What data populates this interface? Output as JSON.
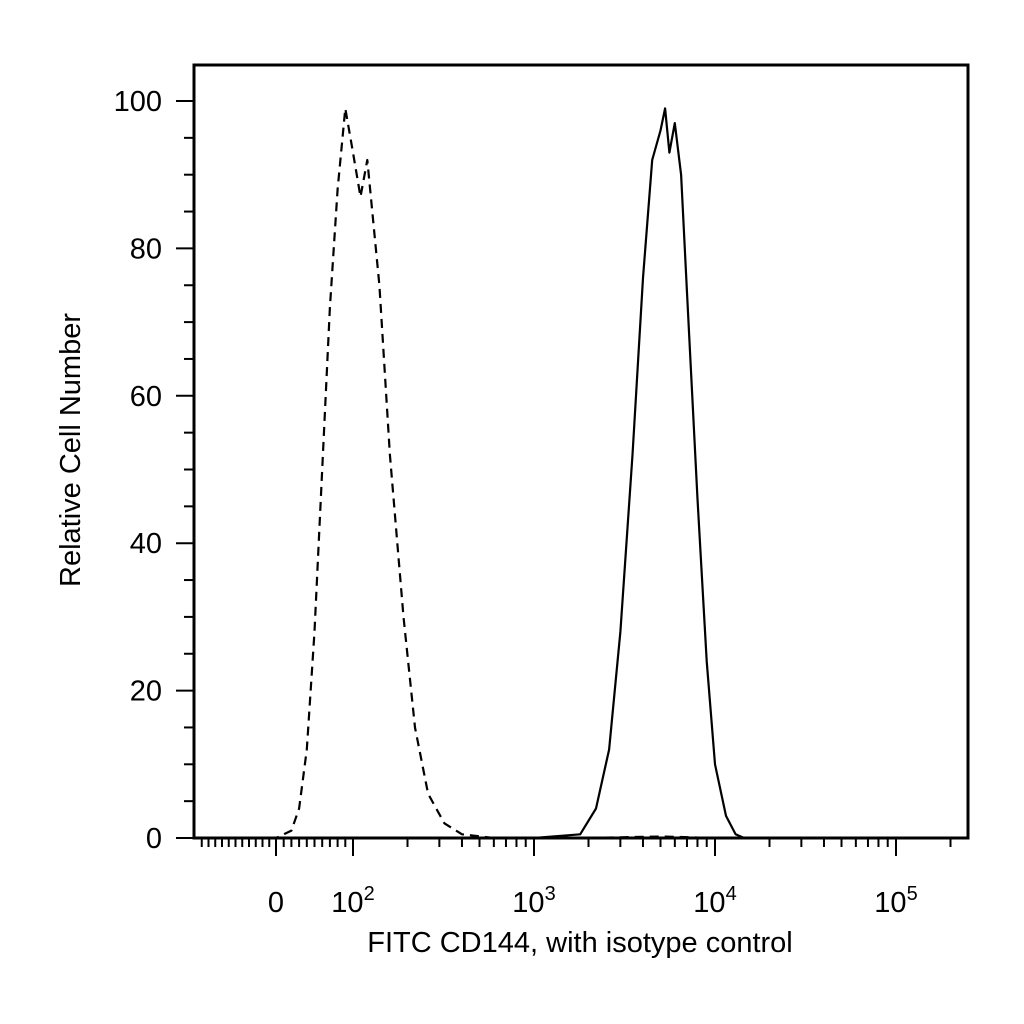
{
  "chart_data": {
    "type": "line",
    "title": "",
    "xlabel": "FITC CD144, with isotype control",
    "ylabel": "Relative Cell Number",
    "x_scale": "biexponential",
    "xlim": [
      -60,
      230000
    ],
    "ylim": [
      0,
      100
    ],
    "grid": false,
    "legend": "none",
    "y_ticks": [
      {
        "value": 0,
        "label": "0"
      },
      {
        "value": 20,
        "label": "20"
      },
      {
        "value": 40,
        "label": "40"
      },
      {
        "value": 60,
        "label": "60"
      },
      {
        "value": 80,
        "label": "80"
      },
      {
        "value": 100,
        "label": "100"
      }
    ],
    "x_ticks": [
      {
        "value": 0,
        "base": "0",
        "exp": ""
      },
      {
        "value": 100,
        "base": "10",
        "exp": "2"
      },
      {
        "value": 1000,
        "base": "10",
        "exp": "3"
      },
      {
        "value": 10000,
        "base": "10",
        "exp": "4"
      },
      {
        "value": 100000,
        "base": "10",
        "exp": "5"
      }
    ],
    "series": [
      {
        "style": "dashed",
        "x": [
          -60,
          0,
          20,
          30,
          40,
          50,
          60,
          70,
          80,
          90,
          100,
          110,
          120,
          140,
          160,
          190,
          220,
          260,
          320,
          400,
          600,
          1000,
          2000,
          5000,
          10000,
          230000
        ],
        "y": [
          0,
          0,
          1,
          4,
          12,
          28,
          50,
          72,
          88,
          99,
          93,
          87,
          92,
          75,
          52,
          30,
          15,
          6,
          2,
          0.5,
          0,
          0,
          0,
          0.2,
          0,
          0
        ]
      },
      {
        "style": "solid",
        "x": [
          -60,
          1000,
          1800,
          2200,
          2600,
          3000,
          3500,
          4000,
          4500,
          5000,
          5300,
          5600,
          6000,
          6500,
          7000,
          8000,
          9000,
          10000,
          11500,
          13000,
          14500,
          30000,
          230000
        ],
        "y": [
          0,
          0,
          0.5,
          4,
          12,
          28,
          52,
          76,
          92,
          96,
          99,
          93,
          97,
          90,
          74,
          46,
          24,
          10,
          3,
          0.5,
          0,
          0,
          0
        ]
      }
    ]
  }
}
